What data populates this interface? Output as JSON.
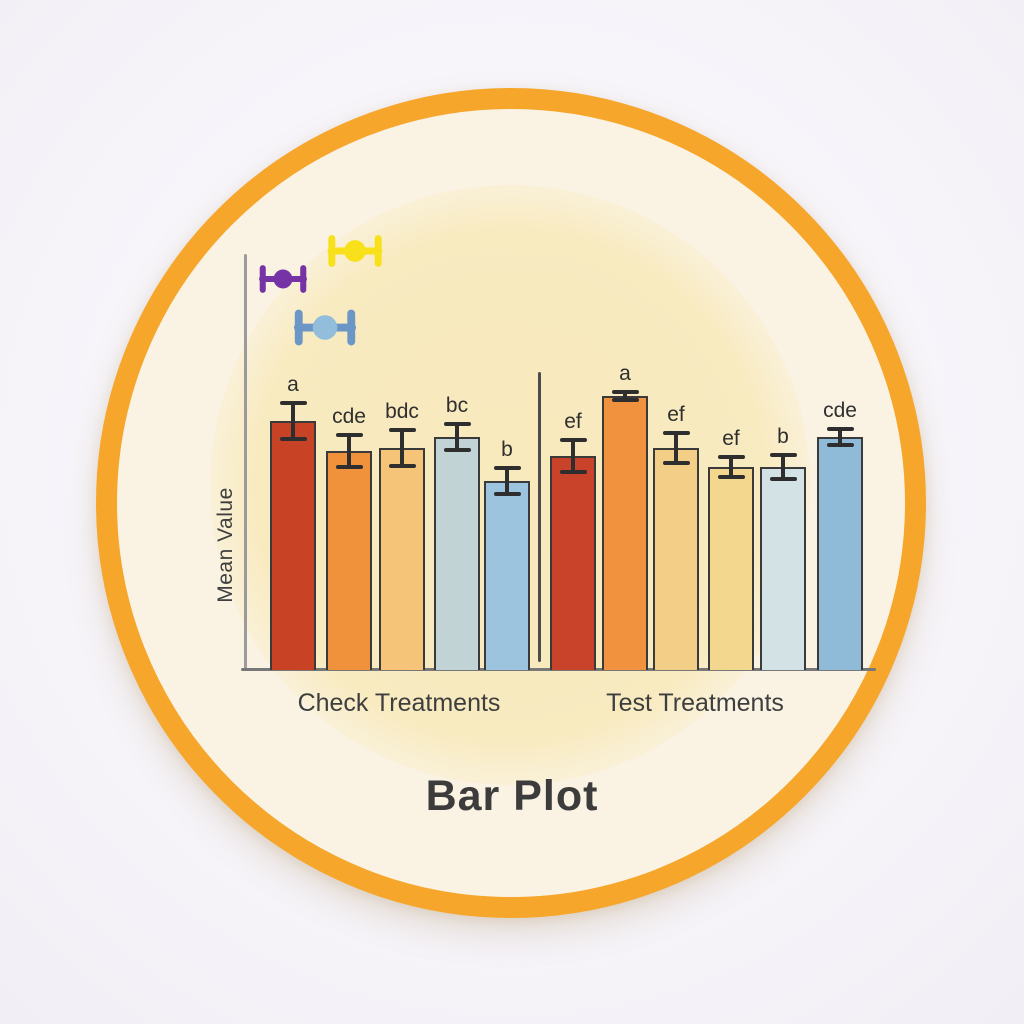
{
  "badge": {
    "ring_color": "#F6A62B",
    "face_color": "#FAF3E3",
    "glow_color": "#F6DC82",
    "background_color": "#F5F3F8"
  },
  "chart_data": {
    "type": "bar",
    "title": "Bar Plot",
    "ylabel": "Mean Value",
    "xlabel": "",
    "grid": false,
    "y_axis": {
      "ticks_shown": false,
      "note": "no numeric tick labels visible; bar values are relative, normalized so tallest bar = 100"
    },
    "categories": [
      "Check Treatments",
      "Test Treatments"
    ],
    "groups": [
      {
        "label": "Check Treatments",
        "bars": [
          {
            "sig_letter": "a",
            "value": 91,
            "error": 6.6,
            "color": "#C84226"
          },
          {
            "sig_letter": "cde",
            "value": 80,
            "error": 5.8,
            "color": "#F0913C"
          },
          {
            "sig_letter": "bdc",
            "value": 81,
            "error": 6.4,
            "color": "#F5C478"
          },
          {
            "sig_letter": "bc",
            "value": 85,
            "error": 4.6,
            "color": "#C2D3D6"
          },
          {
            "sig_letter": "b",
            "value": 69,
            "error": 4.6,
            "color": "#9CC4DE"
          }
        ]
      },
      {
        "label": "Test Treatments",
        "bars": [
          {
            "sig_letter": "ef",
            "value": 78,
            "error": 5.8,
            "color": "#C8432A"
          },
          {
            "sig_letter": "a",
            "value": 100,
            "error": 1.5,
            "color": "#F0923E"
          },
          {
            "sig_letter": "ef",
            "value": 81,
            "error": 5.5,
            "color": "#F2CE86"
          },
          {
            "sig_letter": "ef",
            "value": 74,
            "error": 3.6,
            "color": "#F4D78F"
          },
          {
            "sig_letter": "b",
            "value": 74,
            "error": 4.4,
            "color": "#D3E3E5"
          },
          {
            "sig_letter": "cde",
            "value": 85,
            "error": 3.1,
            "color": "#8FBAD8"
          }
        ]
      }
    ],
    "legend_glyphs": [
      {
        "name": "yellow-errorbar",
        "color": "#F8E01A",
        "dot_color": "#F8E01A"
      },
      {
        "name": "purple-errorbar",
        "color": "#7633A6",
        "dot_color": "#7633A6"
      },
      {
        "name": "blue-errorbar",
        "color": "#6C96C6",
        "dot_color": "#92BEDC"
      }
    ],
    "style": {
      "axis_color": "#9B9B9B",
      "errorbar_color": "#2E2E2E",
      "bar_border_color": "#3A3A3A",
      "legend_position": "top-left",
      "error_bars_centered_on_bar_top": true
    }
  }
}
